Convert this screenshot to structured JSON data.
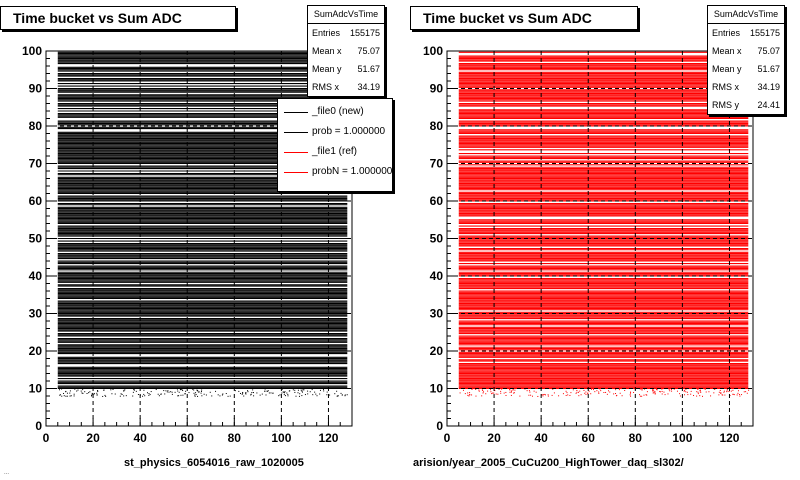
{
  "chart_data": [
    {
      "type": "scatter",
      "title": "Time bucket vs Sum ADC",
      "xlim": [
        0,
        130
      ],
      "ylim": [
        0,
        100
      ],
      "xticks": [
        0,
        20,
        40,
        60,
        80,
        100,
        120
      ],
      "yticks": [
        0,
        10,
        20,
        30,
        40,
        50,
        60,
        70,
        80,
        90,
        100
      ],
      "grid": true,
      "color": "#000000",
      "x_range": [
        5,
        128
      ],
      "y_range": [
        10,
        100
      ],
      "stats": {
        "header": "SumAdcVsTime",
        "rows": [
          {
            "label": "Entries",
            "value": "155175"
          },
          {
            "label": "Mean x",
            "value": "75.07"
          },
          {
            "label": "Mean y",
            "value": "51.67"
          },
          {
            "label": "RMS x",
            "value": "34.19"
          }
        ]
      },
      "legend": {
        "position": "top-right",
        "entries": [
          {
            "label": "_file0 (new)",
            "color": "#000000"
          },
          {
            "label": "prob = 1.000000",
            "color": "#000000"
          },
          {
            "label": "_file1 (ref)",
            "color": "#ff0000"
          },
          {
            "label": "probN = 1.000000",
            "color": "#ff0000"
          }
        ]
      },
      "footer": "st_physics_6054016_raw_1020005"
    },
    {
      "type": "scatter",
      "title": "Time bucket vs Sum ADC",
      "xlim": [
        0,
        130
      ],
      "ylim": [
        0,
        100
      ],
      "xticks": [
        0,
        20,
        40,
        60,
        80,
        100,
        120
      ],
      "yticks": [
        0,
        10,
        20,
        30,
        40,
        50,
        60,
        70,
        80,
        90,
        100
      ],
      "grid": true,
      "color": "#ff0000",
      "x_range": [
        5,
        128
      ],
      "y_range": [
        10,
        100
      ],
      "stats": {
        "header": "SumAdcVsTime",
        "rows": [
          {
            "label": "Entries",
            "value": "155175"
          },
          {
            "label": "Mean x",
            "value": "75.07"
          },
          {
            "label": "Mean y",
            "value": "51.67"
          },
          {
            "label": "RMS x",
            "value": "34.19"
          },
          {
            "label": "RMS y",
            "value": "24.41"
          }
        ]
      },
      "footer": "arision/year_2005_CuCu200_HighTower_daq_sl302/"
    }
  ],
  "bottom_left_text": "..."
}
